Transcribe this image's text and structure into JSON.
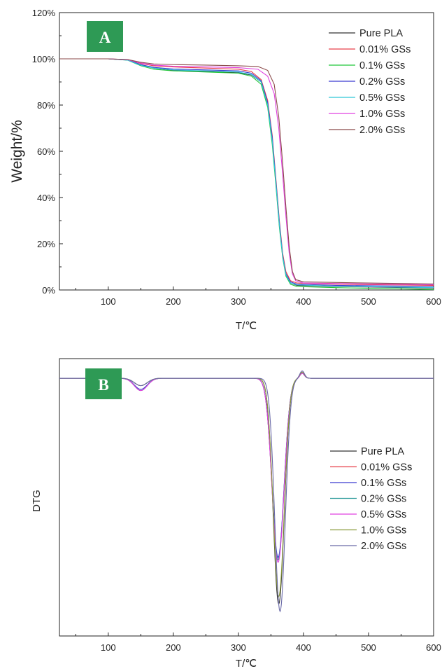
{
  "chart_data": [
    {
      "type": "line",
      "panel_label": "A",
      "xlabel": "T/℃",
      "ylabel": "Weight/%",
      "xlim": [
        25,
        600
      ],
      "ylim": [
        0,
        120
      ],
      "x_ticks": [
        100,
        200,
        300,
        400,
        500,
        600
      ],
      "y_ticks": [
        "0%",
        "20%",
        "40%",
        "60%",
        "80%",
        "100%",
        "120%"
      ],
      "legend_position": "top-right",
      "series": [
        {
          "name": "Pure PLA",
          "color": "#333333",
          "points": [
            [
              25,
              100
            ],
            [
              100,
              100
            ],
            [
              130,
              99.5
            ],
            [
              150,
              97.5
            ],
            [
              170,
              96
            ],
            [
              200,
              95
            ],
            [
              250,
              94.5
            ],
            [
              300,
              94
            ],
            [
              320,
              93
            ],
            [
              335,
              90
            ],
            [
              345,
              80
            ],
            [
              352,
              65
            ],
            [
              358,
              45
            ],
            [
              363,
              28
            ],
            [
              368,
              15
            ],
            [
              373,
              7
            ],
            [
              380,
              3
            ],
            [
              390,
              2
            ],
            [
              450,
              1.5
            ],
            [
              600,
              0.8
            ]
          ]
        },
        {
          "name": "0.01% GSs",
          "color": "#e8404a",
          "points": [
            [
              25,
              100
            ],
            [
              100,
              100
            ],
            [
              130,
              99.7
            ],
            [
              150,
              98
            ],
            [
              170,
              97
            ],
            [
              200,
              96.5
            ],
            [
              250,
              96
            ],
            [
              300,
              95.5
            ],
            [
              320,
              94.5
            ],
            [
              335,
              91
            ],
            [
              345,
              82
            ],
            [
              352,
              67
            ],
            [
              358,
              47
            ],
            [
              363,
              30
            ],
            [
              368,
              16
            ],
            [
              373,
              8
            ],
            [
              380,
              4
            ],
            [
              390,
              3
            ],
            [
              450,
              2.5
            ],
            [
              600,
              2
            ]
          ]
        },
        {
          "name": "0.1% GSs",
          "color": "#22c63a",
          "points": [
            [
              25,
              100
            ],
            [
              100,
              100
            ],
            [
              130,
              99.4
            ],
            [
              150,
              97
            ],
            [
              170,
              95.5
            ],
            [
              200,
              94.8
            ],
            [
              250,
              94.3
            ],
            [
              300,
              93.8
            ],
            [
              320,
              92.5
            ],
            [
              335,
              89
            ],
            [
              345,
              79
            ],
            [
              352,
              63
            ],
            [
              358,
              44
            ],
            [
              363,
              27
            ],
            [
              368,
              14
            ],
            [
              373,
              6
            ],
            [
              380,
              2.5
            ],
            [
              390,
              1.5
            ],
            [
              450,
              1
            ],
            [
              600,
              0.2
            ]
          ]
        },
        {
          "name": "0.2% GSs",
          "color": "#3a3ad0",
          "points": [
            [
              25,
              100
            ],
            [
              100,
              100
            ],
            [
              130,
              99.5
            ],
            [
              150,
              97.5
            ],
            [
              170,
              96.3
            ],
            [
              200,
              95.6
            ],
            [
              250,
              95.2
            ],
            [
              300,
              94.8
            ],
            [
              320,
              93.8
            ],
            [
              335,
              90.5
            ],
            [
              345,
              81
            ],
            [
              352,
              66
            ],
            [
              358,
              46
            ],
            [
              363,
              29
            ],
            [
              368,
              15
            ],
            [
              373,
              7
            ],
            [
              380,
              3.5
            ],
            [
              390,
              2.5
            ],
            [
              450,
              2
            ],
            [
              600,
              1.5
            ]
          ]
        },
        {
          "name": "0.5% GSs",
          "color": "#2ec8d8",
          "points": [
            [
              25,
              100
            ],
            [
              100,
              100
            ],
            [
              130,
              99.4
            ],
            [
              150,
              97.2
            ],
            [
              170,
              96
            ],
            [
              200,
              95.2
            ],
            [
              250,
              94.8
            ],
            [
              300,
              94.3
            ],
            [
              320,
              93.2
            ],
            [
              335,
              90
            ],
            [
              345,
              80
            ],
            [
              352,
              64.5
            ],
            [
              358,
              45
            ],
            [
              363,
              28
            ],
            [
              368,
              14.5
            ],
            [
              373,
              6.5
            ],
            [
              380,
              3
            ],
            [
              390,
              2.2
            ],
            [
              450,
              1.6
            ],
            [
              600,
              1
            ]
          ]
        },
        {
          "name": "1.0% GSs",
          "color": "#e040e0",
          "points": [
            [
              25,
              100
            ],
            [
              100,
              100
            ],
            [
              130,
              99.6
            ],
            [
              150,
              98.2
            ],
            [
              170,
              97.3
            ],
            [
              200,
              96.8
            ],
            [
              250,
              96.5
            ],
            [
              300,
              96.2
            ],
            [
              330,
              95.5
            ],
            [
              345,
              92.5
            ],
            [
              355,
              85
            ],
            [
              362,
              70
            ],
            [
              368,
              50
            ],
            [
              373,
              32
            ],
            [
              378,
              16
            ],
            [
              383,
              7
            ],
            [
              388,
              4
            ],
            [
              400,
              3
            ],
            [
              500,
              2.6
            ],
            [
              600,
              2.3
            ]
          ]
        },
        {
          "name": "2.0% GSs",
          "color": "#8b4a4a",
          "points": [
            [
              25,
              100
            ],
            [
              100,
              100
            ],
            [
              130,
              99.7
            ],
            [
              150,
              98.5
            ],
            [
              170,
              97.8
            ],
            [
              200,
              97.5
            ],
            [
              250,
              97.3
            ],
            [
              300,
              97
            ],
            [
              330,
              96.7
            ],
            [
              345,
              95
            ],
            [
              355,
              89
            ],
            [
              362,
              75
            ],
            [
              368,
              55
            ],
            [
              373,
              36
            ],
            [
              378,
              19
            ],
            [
              383,
              8
            ],
            [
              388,
              4.5
            ],
            [
              400,
              3.5
            ],
            [
              500,
              3
            ],
            [
              600,
              2.6
            ]
          ]
        }
      ]
    },
    {
      "type": "line",
      "panel_label": "B",
      "xlabel": "T/℃",
      "ylabel": "DTG",
      "xlim": [
        25,
        600
      ],
      "ylim": [
        -1.05,
        0.08
      ],
      "y_ticks_shown": false,
      "x_ticks": [
        100,
        200,
        300,
        400,
        500,
        600
      ],
      "legend_position": "center-right",
      "series": [
        {
          "name": "Pure PLA",
          "color": "#333333",
          "peak_x": 362,
          "peak_depth": -0.92,
          "peak_width": 12,
          "shoulder": -0.03,
          "bump": 0.025
        },
        {
          "name": "0.01% GSs",
          "color": "#e8404a",
          "peak_x": 361,
          "peak_depth": -0.74,
          "peak_width": 13,
          "shoulder": -0.05,
          "bump": 0.02
        },
        {
          "name": "0.1% GSs",
          "color": "#3a3ad0",
          "peak_x": 361,
          "peak_depth": -0.73,
          "peak_width": 13,
          "shoulder": -0.045,
          "bump": 0.02
        },
        {
          "name": "0.2% GSs",
          "color": "#2a9a9a",
          "peak_x": 361,
          "peak_depth": -0.74,
          "peak_width": 13,
          "shoulder": -0.05,
          "bump": 0.02
        },
        {
          "name": "0.5% GSs",
          "color": "#e040e0",
          "peak_x": 361,
          "peak_depth": -0.75,
          "peak_width": 13,
          "shoulder": -0.05,
          "bump": 0.02
        },
        {
          "name": "1.0% GSs",
          "color": "#8a9a3a",
          "peak_x": 362,
          "peak_depth": -0.89,
          "peak_width": 12,
          "shoulder": -0.03,
          "bump": 0.025
        },
        {
          "name": "2.0% GSs",
          "color": "#6a6aa8",
          "peak_x": 364,
          "peak_depth": -0.95,
          "peak_width": 11.5,
          "shoulder": -0.03,
          "bump": 0.03
        }
      ]
    }
  ]
}
